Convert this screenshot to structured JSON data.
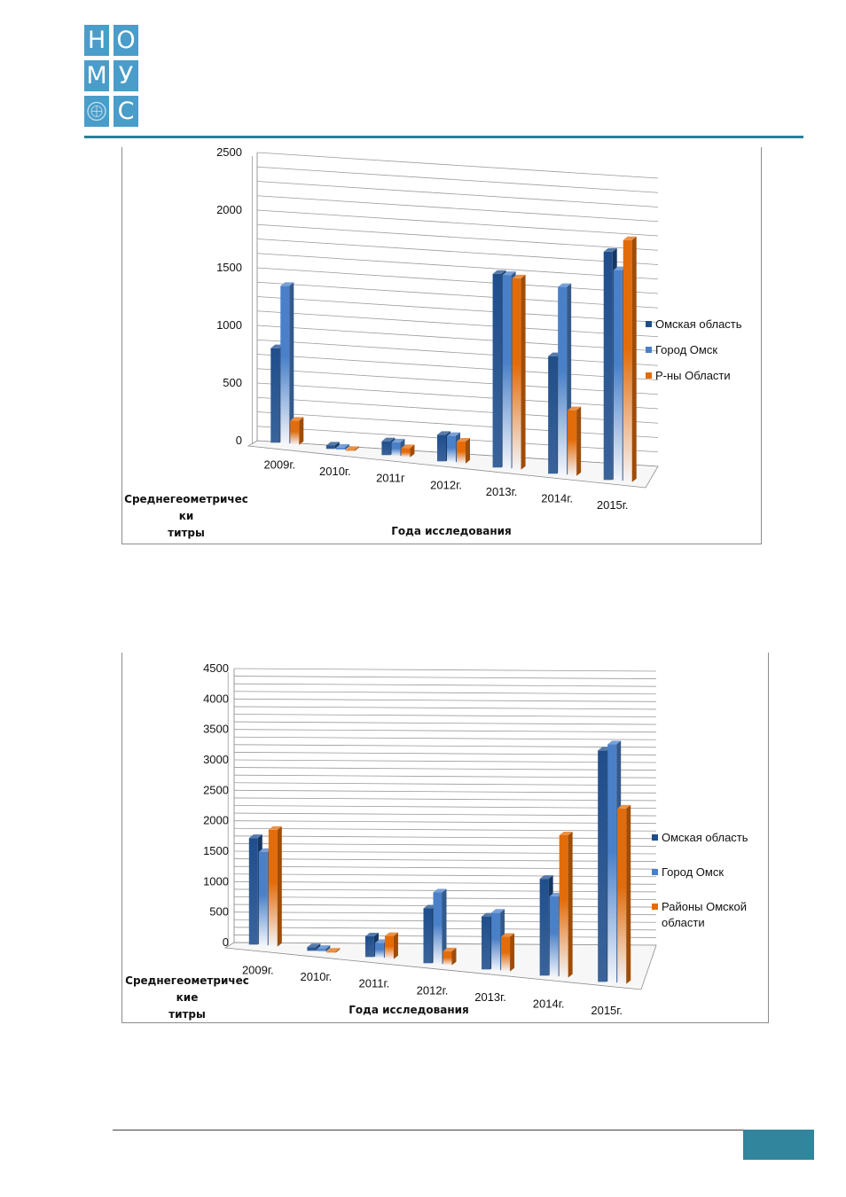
{
  "logo": {
    "letters": [
      "Н",
      "О",
      "М",
      "У",
      "С"
    ]
  },
  "chart_data": [
    {
      "type": "bar",
      "categories": [
        "2009г.",
        "2010г.",
        "2011г",
        "2012г.",
        "2013г.",
        "2014г.",
        "2015г."
      ],
      "series": [
        {
          "name": "Омская область",
          "values": [
            820,
            30,
            120,
            230,
            1680,
            1020,
            1980
          ]
        },
        {
          "name": "Город Омск",
          "values": [
            1370,
            20,
            120,
            230,
            1680,
            1630,
            1830
          ]
        },
        {
          "name": "Р-ны Области",
          "values": [
            210,
            10,
            80,
            190,
            1660,
            570,
            2100
          ]
        }
      ],
      "ylim": [
        0,
        2500
      ],
      "yticks": [
        "0",
        "500",
        "1000",
        "1500",
        "2000",
        "2500"
      ],
      "xlabel": "Года исследования",
      "ylabel": "Среднегеометричес ки титры",
      "ylabel_lines": [
        "Среднегеометричес",
        "ки",
        "титры"
      ],
      "legend": "right",
      "grid": true
    },
    {
      "type": "bar",
      "categories": [
        "2009г.",
        "2010г.",
        "2011г.",
        "2012г.",
        "2013г.",
        "2014г.",
        "2015г."
      ],
      "series": [
        {
          "name": "Омская область",
          "values": [
            1750,
            60,
            340,
            900,
            870,
            1590,
            3800
          ]
        },
        {
          "name": "Город Омск",
          "values": [
            1540,
            50,
            250,
            1180,
            950,
            1320,
            3920
          ]
        },
        {
          "name": "Районы Омской области",
          "values": [
            1920,
            20,
            380,
            230,
            570,
            2340,
            2880
          ]
        }
      ],
      "ylim": [
        0,
        4500
      ],
      "yticks": [
        "0",
        "500",
        "1000",
        "1500",
        "2000",
        "2500",
        "3000",
        "3500",
        "4000",
        "4500"
      ],
      "xlabel": "Года исследования",
      "ylabel": "Среднегеометричес кие титры",
      "ylabel_lines": [
        "Среднегеометричес",
        "кие",
        "титры"
      ],
      "legend": "right",
      "legend_lines": [
        [
          "Омская область"
        ],
        [
          "Город Омск"
        ],
        [
          "Районы Омской",
          "области"
        ]
      ],
      "grid": true
    }
  ],
  "colors": {
    "dark_blue": "#1f4e8c",
    "mid_blue": "#4a80c8",
    "orange": "#e36c0a",
    "accent": "#31859c"
  }
}
